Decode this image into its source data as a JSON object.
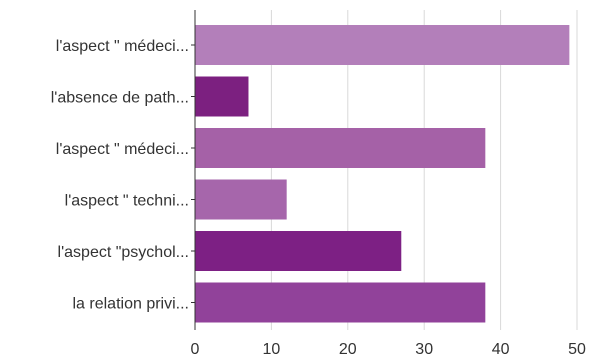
{
  "chart_data": {
    "type": "bar",
    "orientation": "horizontal",
    "categories": [
      "l'aspect \" médeci...",
      "l'absence de path...",
      "l'aspect \" médeci...",
      "l'aspect \" techni...",
      "l'aspect \"psychol...",
      "la relation privi..."
    ],
    "values": [
      49,
      7,
      38,
      12,
      27,
      38
    ],
    "bar_colors": [
      "#b37fba",
      "#7c2080",
      "#a561a7",
      "#a666ab",
      "#7d2084",
      "#91429a"
    ],
    "xlim": [
      0,
      50
    ],
    "x_ticks": [
      0,
      10,
      20,
      30,
      40,
      50
    ],
    "grid": true,
    "legend": "none"
  }
}
